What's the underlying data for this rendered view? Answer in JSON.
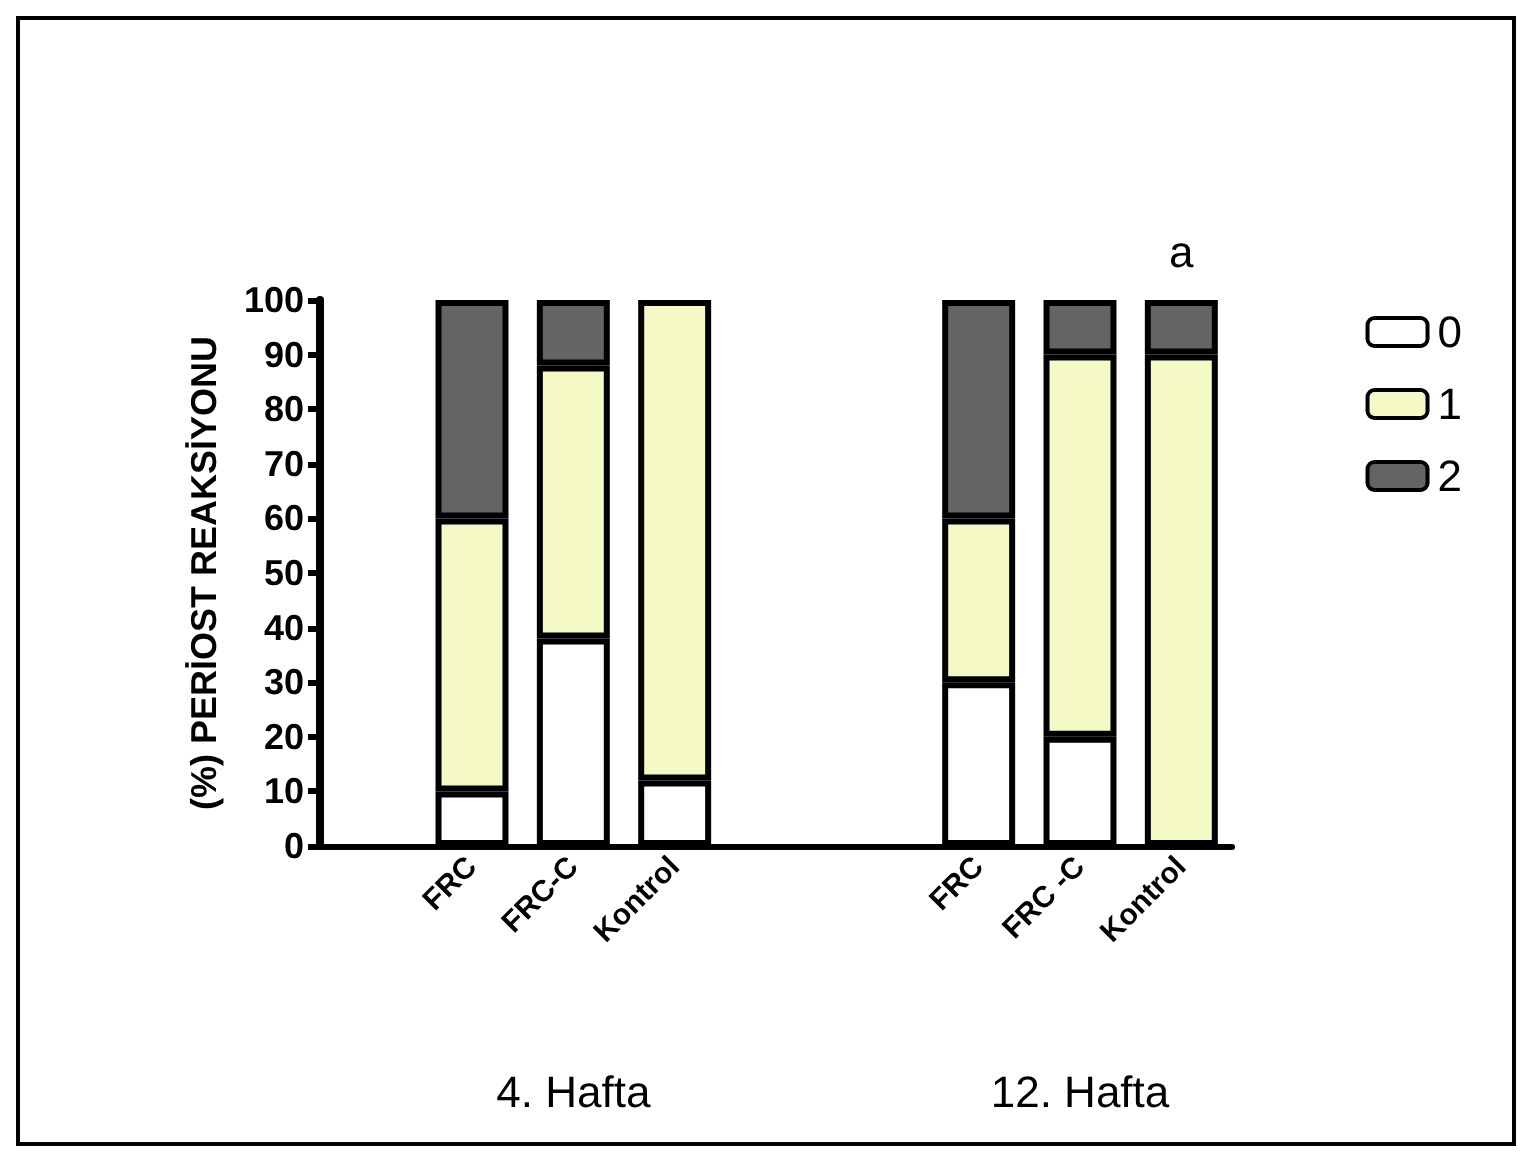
{
  "chart_data": {
    "type": "bar",
    "stacked": true,
    "ylabel": "(%) PERİOST REAKSİYONU",
    "categories": [
      null,
      "FRC",
      "FRC-C",
      "Kontrol",
      null,
      null,
      "FRC",
      "FRC -C",
      "Kontrol"
    ],
    "series": [
      {
        "name": "0",
        "color": "#ffffff",
        "values": [
          null,
          10,
          38,
          12,
          null,
          null,
          30,
          20,
          0
        ]
      },
      {
        "name": "1",
        "color": "#f5f9c6",
        "values": [
          null,
          50,
          50,
          88,
          null,
          null,
          30,
          70,
          90
        ]
      },
      {
        "name": "2",
        "color": "#646464",
        "values": [
          null,
          40,
          12,
          0,
          null,
          null,
          40,
          10,
          10
        ]
      }
    ],
    "ylim": [
      0,
      100
    ],
    "yticks": [
      0,
      10,
      20,
      30,
      40,
      50,
      60,
      70,
      80,
      90,
      100
    ],
    "annotations": [
      "a",
      "4. Hafta",
      "12. Hafta"
    ],
    "legend": "right",
    "grid": false
  }
}
